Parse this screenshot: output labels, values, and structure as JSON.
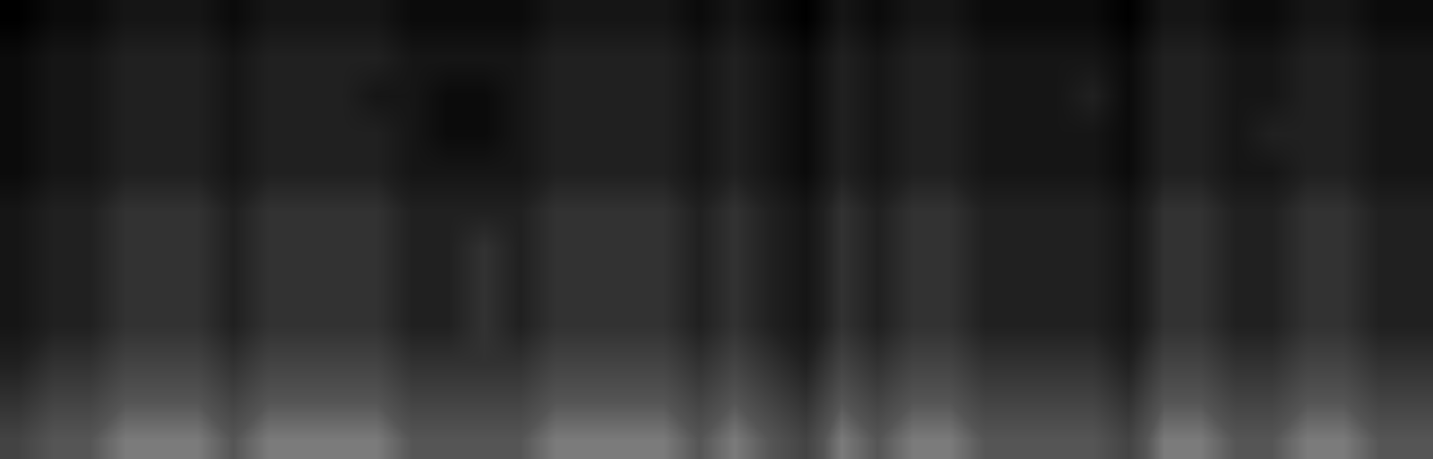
{
  "chart_data": {
    "type": "heatmap",
    "cells": [
      [
        0,
        1,
        1,
        2,
        2,
        2,
        1,
        2,
        2,
        2,
        2,
        1,
        1,
        1,
        1,
        2,
        2,
        2,
        2,
        1,
        2,
        1,
        0,
        2,
        1,
        2,
        2,
        1,
        1,
        1,
        1,
        0,
        2,
        2,
        1,
        1,
        2,
        2,
        1,
        1
      ],
      [
        1,
        2,
        2,
        3,
        3,
        3,
        2,
        3,
        3,
        3,
        3,
        2,
        2,
        2,
        2,
        3,
        3,
        3,
        3,
        2,
        3,
        2,
        1,
        3,
        2,
        3,
        3,
        2,
        2,
        2,
        2,
        1,
        3,
        3,
        2,
        2,
        3,
        3,
        2,
        2
      ],
      [
        1,
        2,
        2,
        3,
        3,
        3,
        2,
        3,
        3,
        3,
        2,
        2,
        1,
        1,
        2,
        3,
        3,
        3,
        3,
        2,
        3,
        2,
        1,
        3,
        2,
        3,
        3,
        2,
        2,
        2,
        3,
        1,
        3,
        3,
        2,
        2,
        3,
        3,
        2,
        2
      ],
      [
        1,
        2,
        2,
        3,
        3,
        3,
        2,
        3,
        3,
        3,
        3,
        2,
        1,
        1,
        2,
        3,
        3,
        3,
        3,
        2,
        3,
        2,
        1,
        3,
        2,
        3,
        3,
        2,
        2,
        2,
        2,
        1,
        3,
        3,
        2,
        3,
        3,
        3,
        2,
        2
      ],
      [
        1,
        2,
        2,
        3,
        3,
        3,
        2,
        3,
        3,
        3,
        3,
        2,
        2,
        2,
        2,
        3,
        3,
        3,
        3,
        2,
        3,
        2,
        1,
        3,
        2,
        3,
        3,
        2,
        2,
        2,
        2,
        1,
        3,
        3,
        2,
        2,
        3,
        3,
        2,
        2
      ],
      [
        2,
        3,
        3,
        4,
        4,
        4,
        3,
        4,
        4,
        4,
        4,
        3,
        3,
        3,
        3,
        4,
        4,
        4,
        4,
        3,
        4,
        3,
        2,
        4,
        3,
        4,
        4,
        3,
        3,
        3,
        3,
        2,
        4,
        4,
        3,
        3,
        4,
        4,
        3,
        3
      ],
      [
        2,
        3,
        3,
        4,
        4,
        4,
        3,
        4,
        4,
        4,
        4,
        3,
        3,
        4,
        3,
        4,
        4,
        4,
        4,
        3,
        4,
        3,
        2,
        4,
        3,
        4,
        4,
        3,
        3,
        3,
        3,
        2,
        4,
        4,
        3,
        3,
        4,
        4,
        3,
        3
      ],
      [
        2,
        3,
        3,
        4,
        4,
        4,
        3,
        4,
        4,
        4,
        4,
        3,
        3,
        4,
        3,
        4,
        4,
        4,
        4,
        3,
        4,
        3,
        2,
        4,
        3,
        4,
        4,
        3,
        3,
        3,
        3,
        2,
        4,
        4,
        3,
        3,
        4,
        4,
        3,
        3
      ],
      [
        2,
        3,
        3,
        4,
        4,
        4,
        3,
        4,
        4,
        4,
        4,
        3,
        3,
        4,
        3,
        4,
        4,
        4,
        4,
        3,
        4,
        3,
        2,
        4,
        3,
        4,
        4,
        3,
        3,
        3,
        3,
        2,
        4,
        4,
        3,
        3,
        4,
        4,
        3,
        3
      ],
      [
        3,
        4,
        4,
        5,
        5,
        5,
        4,
        5,
        5,
        5,
        5,
        4,
        4,
        4,
        4,
        5,
        5,
        5,
        5,
        4,
        5,
        4,
        3,
        5,
        4,
        5,
        5,
        4,
        4,
        4,
        4,
        3,
        5,
        5,
        4,
        4,
        5,
        5,
        4,
        4
      ],
      [
        4,
        5,
        5,
        6,
        6,
        6,
        5,
        6,
        6,
        6,
        6,
        5,
        5,
        5,
        5,
        6,
        6,
        6,
        6,
        5,
        6,
        5,
        4,
        6,
        5,
        6,
        6,
        5,
        5,
        5,
        5,
        4,
        6,
        6,
        5,
        5,
        6,
        6,
        5,
        5
      ],
      [
        5,
        6,
        6,
        7,
        7,
        7,
        6,
        7,
        7,
        7,
        7,
        6,
        6,
        6,
        6,
        7,
        7,
        7,
        7,
        6,
        7,
        6,
        5,
        7,
        6,
        7,
        7,
        6,
        6,
        6,
        6,
        5,
        7,
        7,
        6,
        6,
        7,
        7,
        6,
        6
      ]
    ],
    "color_range": [
      0,
      10
    ],
    "tick_labels": false,
    "grid": false
  }
}
